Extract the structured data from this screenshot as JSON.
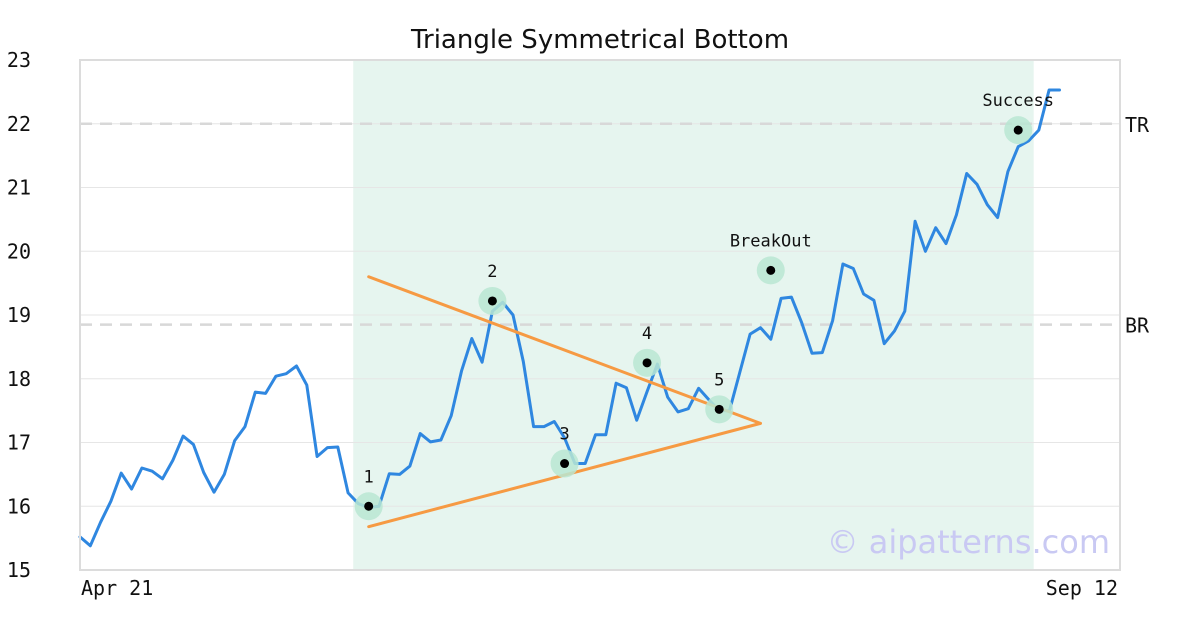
{
  "chart_data": {
    "type": "line",
    "title": "Triangle Symmetrical Bottom",
    "xlabel": "",
    "ylabel": "",
    "ylim": [
      15,
      23
    ],
    "yticks": [
      15,
      16,
      17,
      18,
      19,
      20,
      21,
      22,
      23
    ],
    "x_tick_labels": {
      "start": "Apr 21",
      "end": "Sep 12"
    },
    "grid": true,
    "series": [
      {
        "values": [
          15.52,
          15.38,
          15.75,
          16.08,
          16.52,
          16.27,
          16.6,
          16.55,
          16.43,
          16.72,
          17.1,
          16.97,
          16.53,
          16.22,
          16.5,
          17.03,
          17.25,
          17.79,
          17.77,
          18.04,
          18.08,
          18.2,
          17.9,
          16.78,
          16.92,
          16.93,
          16.21,
          16.04,
          15.98,
          16.0,
          16.51,
          16.5,
          16.63,
          17.14,
          17.01,
          17.04,
          17.42,
          18.12,
          18.63,
          18.26,
          19.06,
          19.2,
          19.0,
          18.27,
          17.25,
          17.25,
          17.33,
          17.07,
          16.67,
          16.67,
          17.12,
          17.12,
          17.93,
          17.86,
          17.35,
          17.8,
          18.23,
          17.71,
          17.48,
          17.53,
          17.85,
          17.67,
          17.5,
          17.5,
          18.1,
          18.7,
          18.8,
          18.62,
          19.26,
          19.28,
          18.88,
          18.4,
          18.41,
          18.91,
          19.8,
          19.73,
          19.33,
          19.23,
          18.55,
          18.75,
          19.06,
          20.47,
          20.0,
          20.37,
          20.12,
          20.57,
          21.22,
          21.05,
          20.73,
          20.53,
          21.25,
          21.64,
          21.73,
          21.9,
          22.53,
          22.53
        ]
      }
    ],
    "triangle": {
      "upper_line": {
        "from": {
          "i": 28,
          "y": 19.6
        },
        "to": {
          "i": 66,
          "y": 17.3
        }
      },
      "lower_line": {
        "from": {
          "i": 28,
          "y": 15.68
        },
        "to": {
          "i": 66,
          "y": 17.3
        }
      },
      "color": "#f69a43"
    },
    "highlight_region": {
      "from_i": 26.5,
      "to_i": 92.5,
      "color": "#e6f5ef"
    },
    "reference_lines": [
      {
        "label": "TR",
        "y": 22.0
      },
      {
        "label": "BR",
        "y": 18.85
      }
    ],
    "points": [
      {
        "label": "1",
        "i": 28,
        "y": 16.0
      },
      {
        "label": "2",
        "i": 40,
        "y": 19.22
      },
      {
        "label": "3",
        "i": 47,
        "y": 16.67
      },
      {
        "label": "4",
        "i": 55,
        "y": 18.25
      },
      {
        "label": "5",
        "i": 62,
        "y": 17.52
      },
      {
        "label": "BreakOut",
        "i": 67,
        "y": 19.7
      },
      {
        "label": "Success",
        "i": 91,
        "y": 21.9
      }
    ],
    "watermark": "© aipatterns.com",
    "colors": {
      "line": "#2f87e0",
      "point_halo": "#b9e6d2",
      "point_dot": "#000000",
      "grid": "#e6e6e6",
      "reference": "#d8d8d8",
      "frame": "#dcdcdc"
    }
  }
}
